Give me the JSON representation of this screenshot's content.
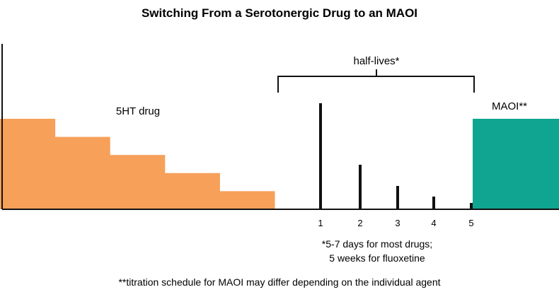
{
  "title": "Switching From a Serotonergic Drug to an MAOI",
  "drug_label": "5HT drug",
  "maoi_label": "MAOI**",
  "bracket_label": "half-lives*",
  "half_life_ticks": [
    "1",
    "2",
    "3",
    "4",
    "5"
  ],
  "half_life_levels": [
    1.0,
    0.42,
    0.22,
    0.12,
    0.06
  ],
  "drug_taper_levels": [
    1.0,
    0.8,
    0.6,
    0.4,
    0.2
  ],
  "maoi_level": 1.0,
  "footnote_1_line1": "*5-7 days for most drugs;",
  "footnote_1_line2": "5 weeks for fluoxetine",
  "footnote_2": "**titration schedule for MAOI may differ depending on the individual agent",
  "colors": {
    "drug": "#f6a05a",
    "maoi": "#10a591",
    "ink": "#111111"
  }
}
